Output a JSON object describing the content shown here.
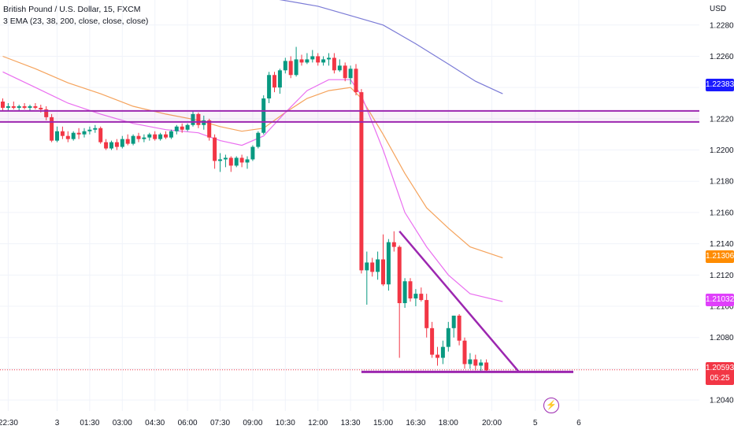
{
  "legend": {
    "title": "British Pound / U.S. Dollar, 15, FXCM",
    "indicator": "3 EMA (23, 38, 200, close, close, close)"
  },
  "currency_label": "USD",
  "badges": {
    "ema200": {
      "value": "1.22383",
      "color": "#1a1aff"
    },
    "ema38": {
      "value": "1.21306",
      "color": "#ff8c00"
    },
    "ema23": {
      "value": "1.21032",
      "color": "#e040fb"
    },
    "price": {
      "value": "1.20593",
      "countdown": "05:25",
      "color": "#f23645"
    }
  },
  "bolt_icon": "lightning-icon",
  "chart_data": {
    "type": "candlestick",
    "y_ticks": [
      "1.22800",
      "1.22600",
      "1.22400",
      "1.22200",
      "1.22000",
      "1.21800",
      "1.21600",
      "1.21400",
      "1.21200",
      "1.21000",
      "1.20800",
      "1.20600",
      "1.20400"
    ],
    "ylim": [
      1.2033,
      1.2296
    ],
    "x_ticks": [
      {
        "label": "22:30",
        "bar": 1
      },
      {
        "label": "3",
        "bar": 10
      },
      {
        "label": "01:30",
        "bar": 16
      },
      {
        "label": "03:00",
        "bar": 22
      },
      {
        "label": "04:30",
        "bar": 28
      },
      {
        "label": "06:00",
        "bar": 34
      },
      {
        "label": "07:30",
        "bar": 40
      },
      {
        "label": "09:00",
        "bar": 46
      },
      {
        "label": "10:30",
        "bar": 52
      },
      {
        "label": "12:00",
        "bar": 58
      },
      {
        "label": "13:30",
        "bar": 64
      },
      {
        "label": "15:00",
        "bar": 70
      },
      {
        "label": "16:30",
        "bar": 76
      },
      {
        "label": "18:00",
        "bar": 82
      },
      {
        "label": "20:00",
        "bar": 90
      },
      {
        "label": "5",
        "bar": 98
      },
      {
        "label": "6",
        "bar": 106
      }
    ],
    "candles": [
      [
        1.2231,
        1.2233,
        1.2225,
        1.2227
      ],
      [
        1.2227,
        1.223,
        1.2225,
        1.2228
      ],
      [
        1.2228,
        1.2231,
        1.2226,
        1.2227
      ],
      [
        1.2227,
        1.2229,
        1.2225,
        1.2228
      ],
      [
        1.2228,
        1.223,
        1.2226,
        1.2227
      ],
      [
        1.2227,
        1.2229,
        1.2225,
        1.2228
      ],
      [
        1.2228,
        1.223,
        1.2226,
        1.2227
      ],
      [
        1.2227,
        1.2229,
        1.2224,
        1.2226
      ],
      [
        1.2226,
        1.2228,
        1.2219,
        1.2221
      ],
      [
        1.2221,
        1.2223,
        1.2205,
        1.2206
      ],
      [
        1.2206,
        1.2215,
        1.2205,
        1.2212
      ],
      [
        1.2212,
        1.2215,
        1.2207,
        1.2209
      ],
      [
        1.2209,
        1.2212,
        1.2205,
        1.2207
      ],
      [
        1.2207,
        1.2212,
        1.2206,
        1.2211
      ],
      [
        1.2211,
        1.2214,
        1.2207,
        1.221
      ],
      [
        1.221,
        1.2214,
        1.2208,
        1.2212
      ],
      [
        1.2212,
        1.2215,
        1.221,
        1.2213
      ],
      [
        1.2213,
        1.2216,
        1.2211,
        1.2214
      ],
      [
        1.2214,
        1.2215,
        1.2204,
        1.2205
      ],
      [
        1.2205,
        1.2207,
        1.22,
        1.2201
      ],
      [
        1.2201,
        1.2206,
        1.22,
        1.2205
      ],
      [
        1.2205,
        1.2207,
        1.22,
        1.2202
      ],
      [
        1.2202,
        1.2209,
        1.2201,
        1.2207
      ],
      [
        1.2207,
        1.221,
        1.2203,
        1.2204
      ],
      [
        1.2204,
        1.221,
        1.2203,
        1.2209
      ],
      [
        1.2209,
        1.2211,
        1.2205,
        1.2207
      ],
      [
        1.2207,
        1.221,
        1.2205,
        1.2208
      ],
      [
        1.2208,
        1.2211,
        1.2206,
        1.221
      ],
      [
        1.221,
        1.2212,
        1.2206,
        1.2207
      ],
      [
        1.2207,
        1.2211,
        1.2206,
        1.221
      ],
      [
        1.221,
        1.2212,
        1.2207,
        1.2208
      ],
      [
        1.2208,
        1.2213,
        1.2207,
        1.2212
      ],
      [
        1.2212,
        1.2216,
        1.221,
        1.2215
      ],
      [
        1.2215,
        1.2217,
        1.2211,
        1.2213
      ],
      [
        1.2213,
        1.2217,
        1.2212,
        1.2216
      ],
      [
        1.2216,
        1.2225,
        1.2215,
        1.2223
      ],
      [
        1.2223,
        1.2224,
        1.2214,
        1.2216
      ],
      [
        1.2216,
        1.2222,
        1.2213,
        1.2219
      ],
      [
        1.2219,
        1.222,
        1.2206,
        1.2208
      ],
      [
        1.2208,
        1.221,
        1.2188,
        1.2193
      ],
      [
        1.2193,
        1.2198,
        1.2186,
        1.2194
      ],
      [
        1.2194,
        1.2197,
        1.2189,
        1.2195
      ],
      [
        1.2195,
        1.2196,
        1.2186,
        1.219
      ],
      [
        1.219,
        1.2196,
        1.2189,
        1.2195
      ],
      [
        1.2195,
        1.2197,
        1.2189,
        1.2192
      ],
      [
        1.2192,
        1.2196,
        1.2188,
        1.2194
      ],
      [
        1.2194,
        1.2203,
        1.2193,
        1.2202
      ],
      [
        1.2202,
        1.2212,
        1.2201,
        1.2211
      ],
      [
        1.2211,
        1.2235,
        1.221,
        1.2233
      ],
      [
        1.2233,
        1.225,
        1.223,
        1.2248
      ],
      [
        1.2248,
        1.225,
        1.2237,
        1.224
      ],
      [
        1.224,
        1.2252,
        1.2236,
        1.2251
      ],
      [
        1.2251,
        1.2259,
        1.2249,
        1.2257
      ],
      [
        1.2257,
        1.226,
        1.2246,
        1.2248
      ],
      [
        1.2248,
        1.2266,
        1.2247,
        1.2258
      ],
      [
        1.2258,
        1.2261,
        1.2254,
        1.2256
      ],
      [
        1.2256,
        1.2262,
        1.2255,
        1.2258
      ],
      [
        1.2258,
        1.2264,
        1.2256,
        1.226
      ],
      [
        1.226,
        1.2262,
        1.2254,
        1.2256
      ],
      [
        1.2256,
        1.226,
        1.2254,
        1.2258
      ],
      [
        1.2258,
        1.2262,
        1.2254,
        1.2259
      ],
      [
        1.2259,
        1.2262,
        1.2249,
        1.2251
      ],
      [
        1.2251,
        1.2258,
        1.225,
        1.2254
      ],
      [
        1.2254,
        1.2256,
        1.2244,
        1.2246
      ],
      [
        1.2246,
        1.2254,
        1.2242,
        1.2252
      ],
      [
        1.2252,
        1.2255,
        1.2235,
        1.2237
      ],
      [
        1.2237,
        1.2239,
        1.2121,
        1.2123
      ],
      [
        1.2123,
        1.2135,
        1.2101,
        1.2128
      ],
      [
        1.2128,
        1.2131,
        1.2119,
        1.2122
      ],
      [
        1.2122,
        1.2135,
        1.2117,
        1.213
      ],
      [
        1.213,
        1.2146,
        1.2113,
        1.2114
      ],
      [
        1.2114,
        1.2143,
        1.211,
        1.2141
      ],
      [
        1.2141,
        1.2148,
        1.2135,
        1.2138
      ],
      [
        1.2138,
        1.2139,
        1.2067,
        1.2102
      ],
      [
        1.2102,
        1.2118,
        1.2099,
        1.2116
      ],
      [
        1.2116,
        1.2118,
        1.2103,
        1.2105
      ],
      [
        1.2105,
        1.2111,
        1.21,
        1.2108
      ],
      [
        1.2108,
        1.2112,
        1.2103,
        1.2104
      ],
      [
        1.2104,
        1.2108,
        1.208,
        1.2086
      ],
      [
        1.2086,
        1.209,
        1.2067,
        1.2069
      ],
      [
        1.2069,
        1.2074,
        1.2062,
        1.2067
      ],
      [
        1.2067,
        1.2078,
        1.2063,
        1.2074
      ],
      [
        1.2074,
        1.209,
        1.2071,
        1.2086
      ],
      [
        1.2086,
        1.2094,
        1.208,
        1.2094
      ],
      [
        1.2094,
        1.2095,
        1.2075,
        1.2078
      ],
      [
        1.2078,
        1.208,
        1.206,
        1.2063
      ],
      [
        1.2063,
        1.207,
        1.206,
        1.2066
      ],
      [
        1.2066,
        1.2069,
        1.2059,
        1.2062
      ],
      [
        1.2062,
        1.2066,
        1.2058,
        1.2064
      ],
      [
        1.2064,
        1.2066,
        1.2058,
        1.2059
      ]
    ],
    "ema200": [
      [
        29,
        1.2306
      ],
      [
        36,
        1.2302
      ],
      [
        48,
        1.2298
      ],
      [
        58,
        1.2292
      ],
      [
        64,
        1.2286
      ],
      [
        70,
        1.228
      ],
      [
        76,
        1.2268
      ],
      [
        82,
        1.2255
      ],
      [
        87,
        1.2244
      ],
      [
        92,
        1.2236
      ]
    ],
    "ema38": [
      [
        0,
        1.226
      ],
      [
        6,
        1.2252
      ],
      [
        12,
        1.2243
      ],
      [
        18,
        1.2236
      ],
      [
        24,
        1.2228
      ],
      [
        30,
        1.2223
      ],
      [
        36,
        1.2219
      ],
      [
        40,
        1.2215
      ],
      [
        44,
        1.2212
      ],
      [
        48,
        1.2214
      ],
      [
        52,
        1.2224
      ],
      [
        56,
        1.2233
      ],
      [
        60,
        1.2238
      ],
      [
        64,
        1.224
      ],
      [
        66,
        1.2233
      ],
      [
        70,
        1.221
      ],
      [
        74,
        1.2185
      ],
      [
        78,
        1.2163
      ],
      [
        82,
        1.215
      ],
      [
        86,
        1.2138
      ],
      [
        92,
        1.2131
      ]
    ],
    "ema23": [
      [
        0,
        1.225
      ],
      [
        6,
        1.224
      ],
      [
        12,
        1.223
      ],
      [
        18,
        1.2223
      ],
      [
        24,
        1.2217
      ],
      [
        30,
        1.2213
      ],
      [
        36,
        1.2211
      ],
      [
        40,
        1.2206
      ],
      [
        44,
        1.2203
      ],
      [
        48,
        1.2209
      ],
      [
        52,
        1.2224
      ],
      [
        56,
        1.2238
      ],
      [
        60,
        1.2245
      ],
      [
        64,
        1.2245
      ],
      [
        66,
        1.2235
      ],
      [
        70,
        1.22
      ],
      [
        74,
        1.216
      ],
      [
        78,
        1.2138
      ],
      [
        82,
        1.212
      ],
      [
        86,
        1.2108
      ],
      [
        92,
        1.2103
      ]
    ],
    "resistance_band": [
      1.2218,
      1.2225
    ],
    "triangle_top": [
      [
        73,
        1.2148
      ],
      [
        95,
        1.2058
      ]
    ],
    "triangle_base": [
      [
        66,
        1.2058
      ],
      [
        105,
        1.2058
      ]
    ],
    "current_price": 1.20593
  }
}
